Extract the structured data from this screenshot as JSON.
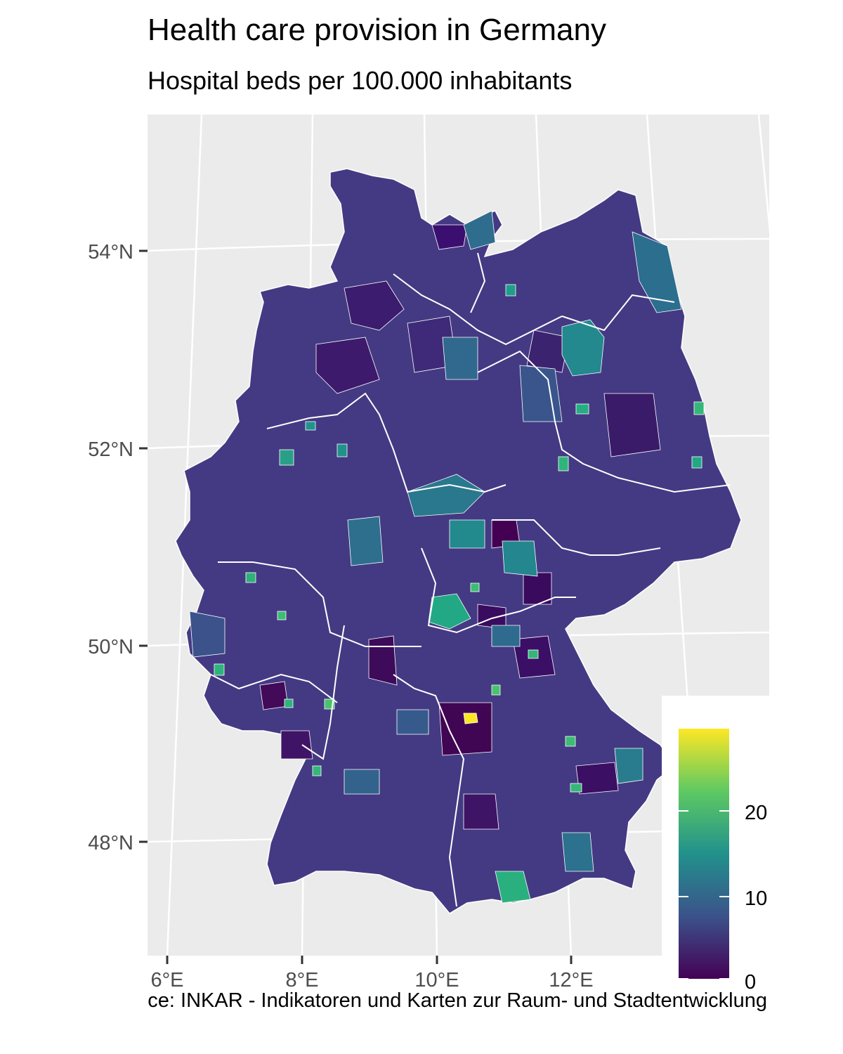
{
  "title": "Health care provision in Germany",
  "subtitle": "Hospital beds per 100.000 inhabitants",
  "caption": "ce: INKAR - Indikatoren und Karten zur Raum- und Stadtentwicklung",
  "chart_data": {
    "type": "heatmap",
    "map": "choropleth",
    "region": "Germany",
    "lat_ticks": [
      "48°N",
      "50°N",
      "52°N",
      "54°N"
    ],
    "lon_ticks": [
      "6°E",
      "8°E",
      "10°E",
      "12°E"
    ],
    "grid": true,
    "legend": {
      "placement": "right",
      "range": [
        0,
        29
      ],
      "breaks": [
        0,
        10,
        20
      ],
      "labels": [
        "0",
        "10",
        "20"
      ],
      "colors": [
        "#440154",
        "#3b528b",
        "#21918c",
        "#5ec962",
        "#fde725"
      ]
    },
    "highlights": [
      {
        "lon": 10.55,
        "lat": 49.2,
        "value": 29
      },
      {
        "lon": 11.0,
        "lat": 47.55,
        "value": 17
      },
      {
        "lon": 12.0,
        "lat": 52.9,
        "value": 12
      },
      {
        "lon": 10.4,
        "lat": 50.35,
        "value": 15
      },
      {
        "lon": 10.7,
        "lat": 51.1,
        "value": 1
      }
    ]
  }
}
